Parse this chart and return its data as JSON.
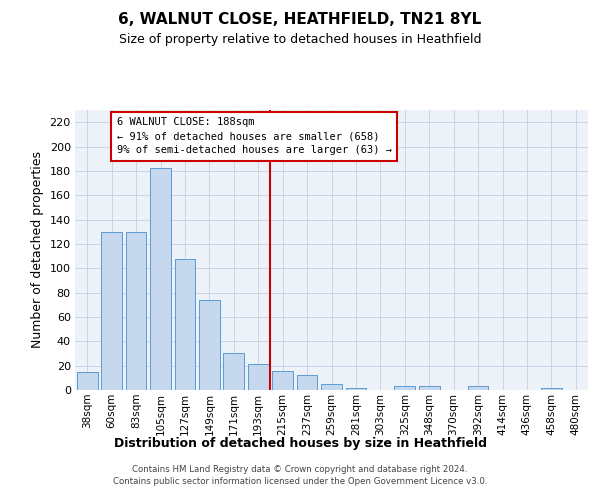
{
  "title": "6, WALNUT CLOSE, HEATHFIELD, TN21 8YL",
  "subtitle": "Size of property relative to detached houses in Heathfield",
  "xlabel": "Distribution of detached houses by size in Heathfield",
  "ylabel": "Number of detached properties",
  "bar_color": "#c5d8ee",
  "bar_edge_color": "#5a9bd5",
  "grid_color": "#c8d4e8",
  "vline_color": "#cc0000",
  "categories": [
    "38sqm",
    "60sqm",
    "83sqm",
    "105sqm",
    "127sqm",
    "149sqm",
    "171sqm",
    "193sqm",
    "215sqm",
    "237sqm",
    "259sqm",
    "281sqm",
    "303sqm",
    "325sqm",
    "348sqm",
    "370sqm",
    "392sqm",
    "414sqm",
    "436sqm",
    "458sqm",
    "480sqm"
  ],
  "values": [
    15,
    130,
    130,
    182,
    108,
    74,
    30,
    21,
    16,
    12,
    5,
    2,
    0,
    3,
    3,
    0,
    3,
    0,
    0,
    2,
    0
  ],
  "vline_position": 7.5,
  "annotation_text": "6 WALNUT CLOSE: 188sqm\n← 91% of detached houses are smaller (658)\n9% of semi-detached houses are larger (63) →",
  "ylim": [
    0,
    230
  ],
  "yticks": [
    0,
    20,
    40,
    60,
    80,
    100,
    120,
    140,
    160,
    180,
    200,
    220
  ],
  "footer1": "Contains HM Land Registry data © Crown copyright and database right 2024.",
  "footer2": "Contains public sector information licensed under the Open Government Licence v3.0.",
  "plot_bg_color": "#edf2f9"
}
